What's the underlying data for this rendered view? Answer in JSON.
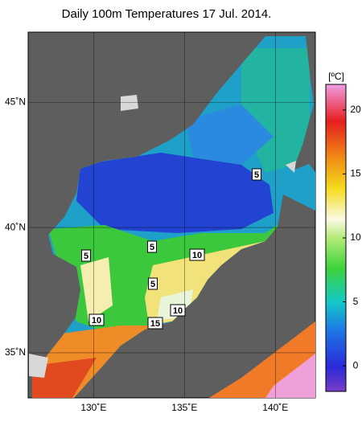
{
  "title": "Daily 100m Temperatures 17 Jul. 2014.",
  "map": {
    "xlim": [
      126.4,
      142.2
    ],
    "ylim": [
      33.2,
      47.8
    ],
    "lon_ticks": [
      {
        "value": 130,
        "label": "130˚E"
      },
      {
        "value": 135,
        "label": "135˚E"
      },
      {
        "value": 140,
        "label": "140˚E"
      }
    ],
    "lat_ticks": [
      {
        "value": 35,
        "label": "35˚N"
      },
      {
        "value": 40,
        "label": "40˚N"
      },
      {
        "value": 45,
        "label": "45˚N"
      }
    ],
    "contour_labels": [
      5,
      5,
      5,
      5,
      10,
      10,
      10,
      15
    ]
  },
  "colorbar": {
    "unit": "[ºC]",
    "range": [
      -2,
      22
    ],
    "ticks": [
      0,
      5,
      10,
      15,
      20
    ]
  }
}
